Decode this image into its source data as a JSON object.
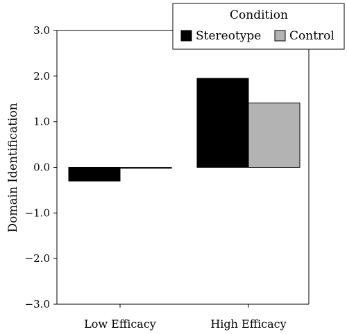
{
  "chart_data": {
    "type": "bar",
    "title": "",
    "xlabel": "",
    "ylabel": "Domain Identification",
    "ylim": [
      -3.0,
      3.0
    ],
    "yticks": [
      3.0,
      2.0,
      1.0,
      0.0,
      -1.0,
      -2.0,
      -3.0
    ],
    "ytick_labels": [
      "3.0",
      "2.0",
      "1.0",
      "0.0",
      "−1.0",
      "−2.0",
      "−3.0"
    ],
    "categories": [
      "Low Efficacy",
      "High Efficacy"
    ],
    "series": [
      {
        "name": "Stereotype",
        "values": [
          -0.3,
          1.95
        ],
        "color": "#000000"
      },
      {
        "name": "Control",
        "values": [
          -0.02,
          1.41
        ],
        "color": "#b3b3b3"
      }
    ],
    "legend": {
      "title": "Condition",
      "placement": "top-right"
    },
    "grid": false
  }
}
